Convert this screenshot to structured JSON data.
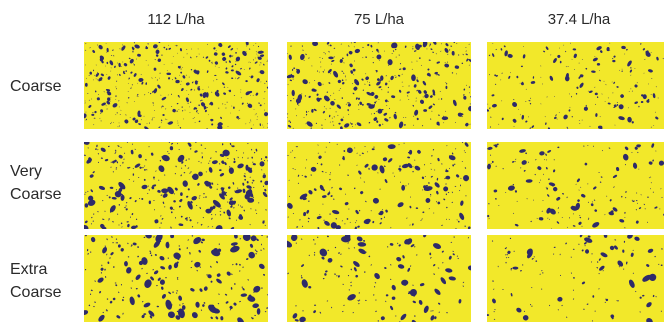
{
  "columns": [
    {
      "label": "112 L/ha"
    },
    {
      "label": "75 L/ha"
    },
    {
      "label": "37.4 L/ha"
    }
  ],
  "rows": [
    {
      "label_lines": [
        "Coarse"
      ]
    },
    {
      "label_lines": [
        "Very",
        "Coarse"
      ]
    },
    {
      "label_lines": [
        "Extra",
        "Coarse"
      ]
    }
  ],
  "card_density": [
    [
      0.9,
      0.75,
      0.4
    ],
    [
      0.7,
      0.45,
      0.35
    ],
    [
      0.45,
      0.3,
      0.25
    ]
  ],
  "card_drop_scale": [
    [
      0.8,
      0.95,
      0.85
    ],
    [
      1.15,
      1.05,
      1.0
    ],
    [
      1.4,
      1.3,
      1.2
    ]
  ],
  "colors": {
    "card_background": "#f2e82a",
    "droplet": "#2e2a6a",
    "text": "#2a2a2a"
  }
}
